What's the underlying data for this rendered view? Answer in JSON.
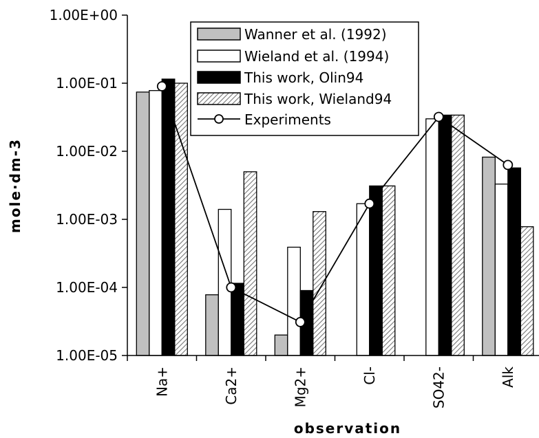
{
  "chart_data": {
    "type": "bar",
    "xlabel": "observation",
    "ylabel": "mole·dm-3",
    "y_scale": "log",
    "ylim": [
      1e-05,
      1
    ],
    "y_ticks": [
      1e-05,
      0.0001,
      0.001,
      0.01,
      0.1,
      1
    ],
    "y_tick_labels": [
      "1.00E-05",
      "1.00E-04",
      "1.00E-03",
      "1.00E-02",
      "1.00E-01",
      "1.00E+00"
    ],
    "categories": [
      "Na+",
      "Ca2+",
      "Mg2+",
      "Cl-",
      "SO42-",
      "Alk"
    ],
    "legend_position": "top-center",
    "series": [
      {
        "name": "Wanner et al. (1992)",
        "style": "gray",
        "fill": "#c0c0c0",
        "values": [
          0.074,
          7.8e-05,
          2e-05,
          null,
          null,
          0.0082
        ]
      },
      {
        "name": "Wieland et al. (1994)",
        "style": "white",
        "fill": "#ffffff",
        "values": [
          0.078,
          0.0014,
          0.00039,
          0.0017,
          0.03,
          0.0033
        ]
      },
      {
        "name": "This work, Olin94",
        "style": "black",
        "fill": "#000000",
        "values": [
          0.115,
          0.000115,
          9e-05,
          0.0031,
          0.034,
          0.0057
        ]
      },
      {
        "name": "This work, Wieland94",
        "style": "hatched",
        "fill": "#e0e0e0",
        "values": [
          0.1,
          0.005,
          0.0013,
          0.0031,
          0.034,
          0.00078
        ]
      }
    ],
    "lines": [
      {
        "name": "Experiments",
        "marker": "open-circle",
        "values": [
          0.09,
          0.0001,
          3.1e-05,
          0.0017,
          0.032,
          0.0063
        ]
      }
    ]
  }
}
